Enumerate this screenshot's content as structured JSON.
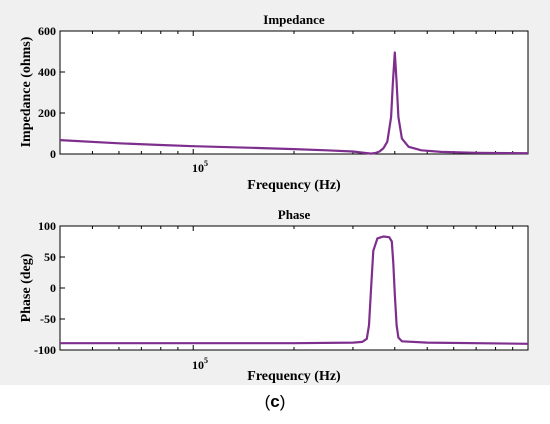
{
  "caption": {
    "open": "(",
    "letter": "c",
    "close": ")"
  },
  "colors": {
    "curve": "#7e2f8e",
    "axes": "#000000",
    "plot_bg": "#ffffff",
    "figure_bg": "#f0f0f0"
  },
  "chart_data": [
    {
      "type": "line",
      "title": "Impedance",
      "xlabel": "Frequency (Hz)",
      "ylabel": "Impedance (ohms)",
      "x_scale": "log",
      "x_tick_label": {
        "base": "10",
        "exp": "5"
      },
      "xlim": [
        40000,
        1000000
      ],
      "ylim": [
        0,
        600
      ],
      "y_ticks": [
        0,
        200,
        400,
        600
      ],
      "grid": false,
      "series": [
        {
          "x": [
            40000,
            60000,
            80000,
            100000,
            150000,
            200000,
            250000,
            300000,
            320000,
            340000,
            350000,
            360000,
            370000,
            380000,
            390000,
            395000,
            400000,
            405000,
            410000,
            420000,
            440000,
            480000,
            550000,
            700000,
            1000000
          ],
          "y": [
            68,
            52,
            44,
            38,
            30,
            24,
            18,
            12,
            7,
            2,
            5,
            12,
            28,
            60,
            180,
            350,
            495,
            350,
            180,
            75,
            35,
            18,
            10,
            6,
            4
          ]
        }
      ]
    },
    {
      "type": "line",
      "title": "Phase",
      "xlabel": "Frequency (Hz)",
      "ylabel": "Phase (deg)",
      "x_scale": "log",
      "x_tick_label": {
        "base": "10",
        "exp": "5"
      },
      "xlim": [
        40000,
        1000000
      ],
      "ylim": [
        -100,
        100
      ],
      "y_ticks": [
        -100,
        -50,
        0,
        50,
        100
      ],
      "grid": false,
      "series": [
        {
          "x": [
            40000,
            100000,
            200000,
            300000,
            320000,
            330000,
            335000,
            340000,
            345000,
            355000,
            370000,
            385000,
            392000,
            396000,
            400000,
            405000,
            410000,
            420000,
            500000,
            1000000
          ],
          "y": [
            -89,
            -89,
            -89,
            -88,
            -87,
            -82,
            -60,
            0,
            60,
            80,
            83,
            82,
            75,
            40,
            -10,
            -60,
            -80,
            -86,
            -88,
            -90
          ]
        }
      ]
    }
  ]
}
